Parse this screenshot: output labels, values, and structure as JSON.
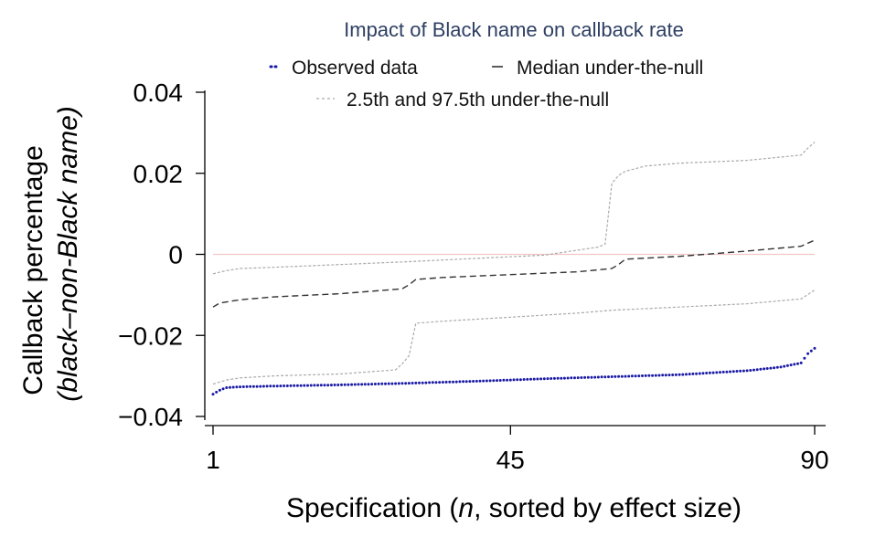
{
  "chart_data": {
    "type": "line",
    "title": "Impact of Black name on callback rate",
    "xlabel_parts": {
      "pre": "Specification (",
      "italic": "n",
      "post": ", sorted by effect size)"
    },
    "ylabel_line1": "Callback percentage",
    "ylabel_line2": "(black–non-Black name)",
    "x_ticks": [
      {
        "value": 1,
        "label": "1"
      },
      {
        "value": 45,
        "label": "45"
      },
      {
        "value": 90,
        "label": "90"
      }
    ],
    "y_ticks": [
      {
        "value": 0.04,
        "label": "0.04"
      },
      {
        "value": 0.02,
        "label": "0.02"
      },
      {
        "value": 0,
        "label": "0"
      },
      {
        "value": -0.02,
        "label": "−0.02"
      },
      {
        "value": -0.04,
        "label": "−0.04"
      }
    ],
    "xlim": [
      1,
      90
    ],
    "ylim": [
      -0.04,
      0.04
    ],
    "zero_line": true,
    "legend": {
      "placement": "top",
      "entries": [
        {
          "label": "Observed data",
          "style": "dotted",
          "color": "#1a1aa6"
        },
        {
          "label": "Median under-the-null",
          "style": "dashed",
          "color": "#333333"
        },
        {
          "label": "2.5th and 97.5th under-the-null",
          "style": "dashed",
          "color": "#aaaaaa"
        }
      ]
    },
    "colors": {
      "observed": "#1a1aa6",
      "median": "#333333",
      "bounds": "#aaaaaa",
      "zero_line": "#f2c6c6",
      "title": "#2e3f63"
    },
    "series": [
      {
        "name": "Observed data",
        "x": [
          1,
          2,
          3,
          5,
          10,
          20,
          30,
          40,
          45,
          50,
          60,
          70,
          75,
          80,
          85,
          88,
          89,
          90
        ],
        "y": [
          -0.0345,
          -0.0335,
          -0.0329,
          -0.0327,
          -0.0325,
          -0.0322,
          -0.0318,
          -0.0313,
          -0.031,
          -0.0307,
          -0.0302,
          -0.0297,
          -0.0292,
          -0.0287,
          -0.0278,
          -0.0268,
          -0.0245,
          -0.0232
        ]
      },
      {
        "name": "Median under-the-null",
        "x": [
          1,
          2,
          5,
          10,
          20,
          29,
          30,
          31,
          35,
          45,
          55,
          60,
          61,
          62,
          70,
          80,
          88,
          90
        ],
        "y": [
          -0.013,
          -0.012,
          -0.0112,
          -0.0105,
          -0.0097,
          -0.0085,
          -0.0075,
          -0.0062,
          -0.0057,
          -0.005,
          -0.0043,
          -0.0035,
          -0.0025,
          -0.0012,
          -0.0005,
          0.0008,
          0.002,
          0.0035
        ]
      },
      {
        "name": "2.5th under-the-null",
        "x": [
          1,
          3,
          5,
          10,
          20,
          28,
          29,
          30,
          31,
          35,
          45,
          55,
          60,
          70,
          80,
          88,
          90
        ],
        "y": [
          -0.032,
          -0.031,
          -0.0305,
          -0.03,
          -0.0295,
          -0.0285,
          -0.027,
          -0.025,
          -0.017,
          -0.0165,
          -0.0155,
          -0.0145,
          -0.0138,
          -0.013,
          -0.0122,
          -0.011,
          -0.0088
        ]
      },
      {
        "name": "97.5th under-the-null",
        "x": [
          1,
          3,
          5,
          10,
          20,
          30,
          40,
          50,
          58,
          59,
          60,
          61,
          62,
          65,
          70,
          80,
          88,
          89,
          90
        ],
        "y": [
          -0.0048,
          -0.004,
          -0.0035,
          -0.0032,
          -0.0025,
          -0.0018,
          -0.001,
          -0.0002,
          0.0018,
          0.0025,
          0.0175,
          0.0195,
          0.0205,
          0.0218,
          0.0225,
          0.0232,
          0.0245,
          0.0262,
          0.0277
        ]
      }
    ]
  }
}
